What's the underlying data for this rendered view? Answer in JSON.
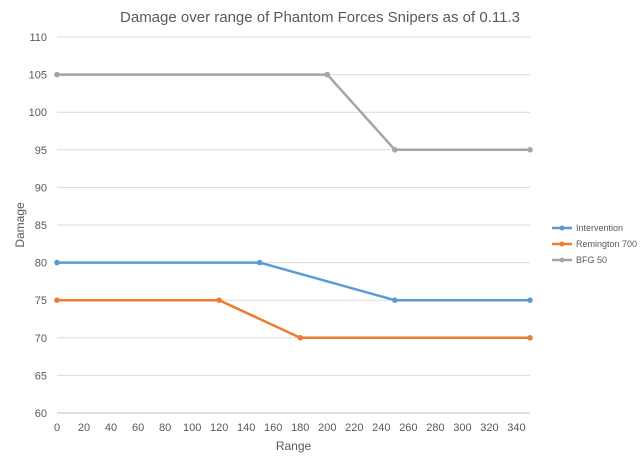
{
  "chart_data": {
    "type": "line",
    "title": "Damage over range of Phantom Forces Snipers as of 0.11.3",
    "xlabel": "Range",
    "ylabel": "Damage",
    "xlim": [
      0,
      350
    ],
    "ylim": [
      60,
      110
    ],
    "xticks": [
      0,
      20,
      40,
      60,
      80,
      100,
      120,
      140,
      160,
      180,
      200,
      220,
      240,
      260,
      280,
      300,
      320,
      340
    ],
    "yticks": [
      60,
      65,
      70,
      75,
      80,
      85,
      90,
      95,
      100,
      105,
      110
    ],
    "grid": "horizontal",
    "legend_position": "right",
    "series": [
      {
        "name": "Intervention",
        "color": "#5b9bd5",
        "points": [
          [
            0,
            80
          ],
          [
            150,
            80
          ],
          [
            250,
            75
          ],
          [
            350,
            75
          ]
        ]
      },
      {
        "name": "Remington 700",
        "color": "#ed7d31",
        "points": [
          [
            0,
            75
          ],
          [
            120,
            75
          ],
          [
            180,
            70
          ],
          [
            350,
            70
          ]
        ]
      },
      {
        "name": "BFG 50",
        "color": "#a5a5a5",
        "points": [
          [
            0,
            105
          ],
          [
            200,
            105
          ],
          [
            250,
            95
          ],
          [
            350,
            95
          ]
        ]
      }
    ]
  }
}
